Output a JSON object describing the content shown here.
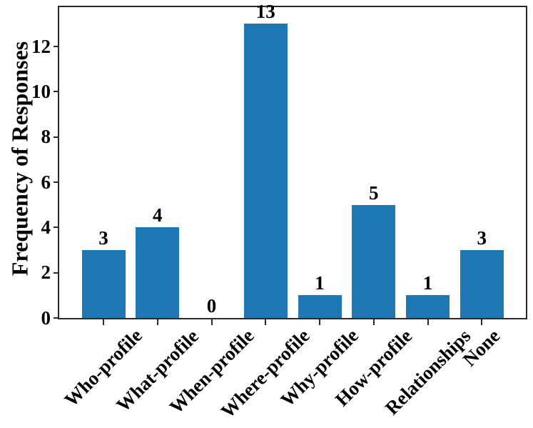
{
  "chart_data": {
    "type": "bar",
    "categories": [
      "Who-profile",
      "What-profile",
      "When-profile",
      "Where-profile",
      "Why-profile",
      "How-profile",
      "Relationships",
      "None"
    ],
    "values": [
      3,
      4,
      0,
      13,
      1,
      5,
      1,
      3
    ],
    "value_labels": [
      "3",
      "4",
      "0",
      "13",
      "1",
      "5",
      "1",
      "3"
    ],
    "title": "",
    "xlabel": "",
    "ylabel": "Frequency of Responses",
    "yticks": [
      0,
      2,
      4,
      6,
      8,
      10,
      12
    ],
    "ylim": [
      0,
      13.74
    ],
    "grid": false,
    "legend": false,
    "xtick_rotation_deg": 45,
    "bar_color": "#1f77b4",
    "axis_color": "#2a2a2a",
    "text_color": "#000000"
  }
}
